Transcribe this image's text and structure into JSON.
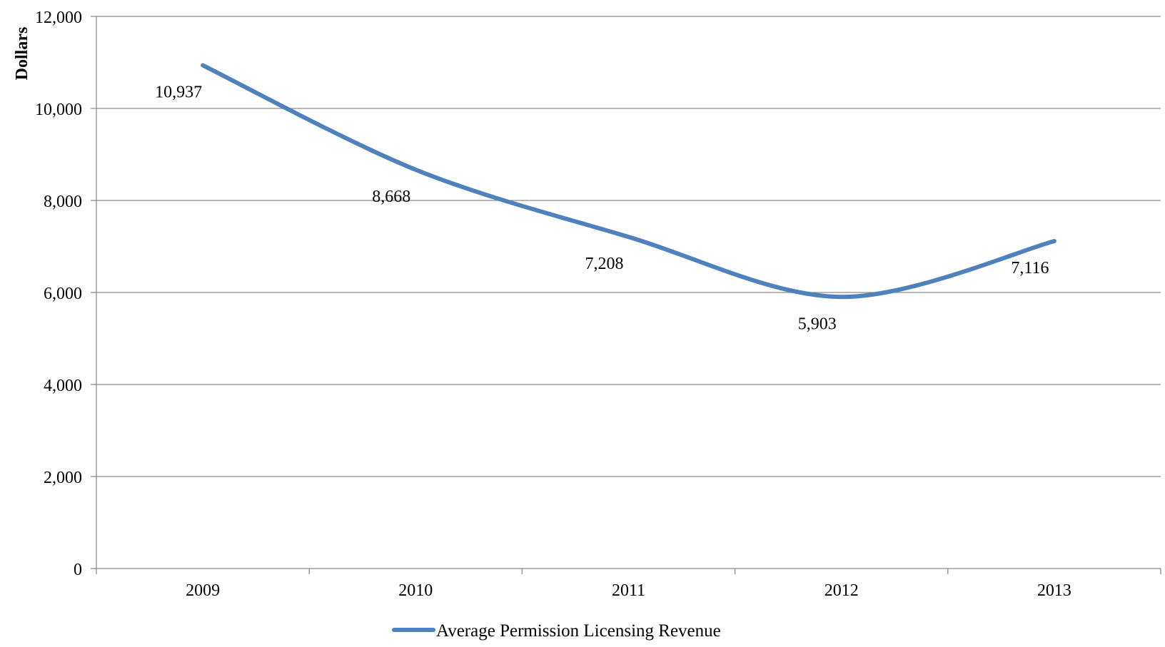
{
  "chart_data": {
    "type": "line",
    "title": "",
    "xlabel": "",
    "ylabel": "Dollars",
    "categories": [
      "2009",
      "2010",
      "2011",
      "2012",
      "2013"
    ],
    "series": [
      {
        "name": "Average Permission Licensing Revenue",
        "values": [
          10937,
          8668,
          7208,
          5903,
          7116
        ],
        "labels": [
          "10,937",
          "8,668",
          "7,208",
          "5,903",
          "7,116"
        ],
        "color": "#4F81BD"
      }
    ],
    "ylim": [
      0,
      12000
    ],
    "yticks": [
      0,
      2000,
      4000,
      6000,
      8000,
      10000,
      12000
    ],
    "ytick_labels": [
      "0",
      "2,000",
      "4,000",
      "6,000",
      "8,000",
      "10,000",
      "12,000"
    ],
    "grid": true,
    "smooth": true,
    "legend_position": "bottom"
  }
}
